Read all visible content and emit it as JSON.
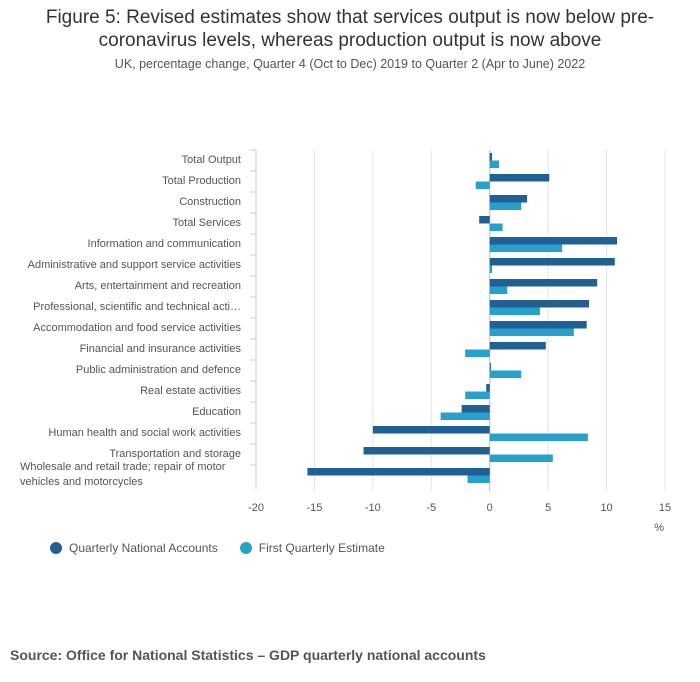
{
  "title_line1": "Figure 5: Revised estimates show that services output is now below pre-",
  "title_line2": "coronavirus levels, whereas production output is now above",
  "subtitle": "UK, percentage change, Quarter 4 (Oct to Dec) 2019 to Quarter 2 (Apr to June) 2022",
  "source": "Source: Office for National Statistics – GDP quarterly national accounts",
  "colors": {
    "series1": "#206095",
    "series2": "#27a0cc",
    "grid": "#e5e5e5"
  },
  "chart_data": {
    "type": "bar",
    "orientation": "horizontal",
    "categories": [
      "Total Output",
      "Total Production",
      "Construction",
      "Total Services",
      "Information and communication",
      "Administrative and support service activities",
      "Arts, entertainment and recreation",
      "Professional, scientific and technical acti…",
      "Accommodation and food service activities",
      "Financial and insurance activities",
      "Public administration and defence",
      "Real estate activities",
      "Education",
      "Human health and social work activities",
      "Transportation and storage",
      "Wholesale and retail trade; repair of motor vehicles and motorcycles"
    ],
    "series": [
      {
        "name": "Quarterly National Accounts",
        "values": [
          0.2,
          5.1,
          3.2,
          -0.9,
          10.9,
          10.7,
          9.2,
          8.5,
          8.3,
          4.8,
          0.1,
          -0.3,
          -2.4,
          -10.0,
          -10.8,
          -15.6
        ]
      },
      {
        "name": "First Quarterly Estimate",
        "values": [
          0.8,
          -1.2,
          2.7,
          1.1,
          6.2,
          0.2,
          1.5,
          4.3,
          7.2,
          -2.1,
          2.7,
          -2.1,
          -4.2,
          8.4,
          5.4,
          -1.9
        ]
      }
    ],
    "x_ticks": [
      "-20",
      "-15",
      "-10",
      "-5",
      "0",
      "5",
      "10",
      "15"
    ],
    "xlim": [
      -20,
      15
    ],
    "xlabel": "%",
    "legend_position": "bottom-left"
  }
}
